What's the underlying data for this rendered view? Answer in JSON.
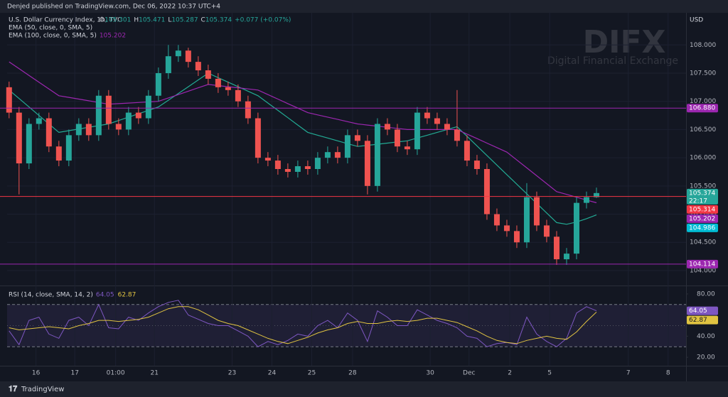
{
  "header": "Denjed published on TradingView.com, Dec 06, 2022 10:37 UTC+4",
  "footer": "TradingView",
  "watermark": {
    "title": "DIFX",
    "subtitle": "Digital Financial Exchange"
  },
  "chart_data": [
    {
      "type": "candlestick",
      "title": "U.S. Dollar Currency Index, 1h, TVC",
      "ohlc_legend": [
        "O",
        "105.301",
        "H",
        "105.471",
        "L",
        "105.287",
        "C",
        "105.374",
        "+0.077 (+0.07%)"
      ],
      "currency": "USD",
      "up_color": "#26a69a",
      "down_color": "#ef5350",
      "grid": true,
      "xlim": [
        -0.2,
        68
      ],
      "ylim": [
        103.76,
        108.52
      ],
      "yticks": [
        {
          "value": 104,
          "label": "104.000"
        },
        {
          "value": 104.5,
          "label": "104.500"
        },
        {
          "value": 105,
          "label": "105.000"
        },
        {
          "value": 105.5,
          "label": "105.500"
        },
        {
          "value": 106,
          "label": "106.000"
        },
        {
          "value": 106.5,
          "label": "106.500"
        },
        {
          "value": 107,
          "label": "107.000"
        },
        {
          "value": 107.5,
          "label": "107.500"
        },
        {
          "value": 108,
          "label": "108.000"
        }
      ],
      "open": [
        107.25,
        106.8,
        105.9,
        106.6,
        106.7,
        106.2,
        105.95,
        106.4,
        106.6,
        106.4,
        107.1,
        106.6,
        106.5,
        106.8,
        106.7,
        107.1,
        107.5,
        107.8,
        107.9,
        107.7,
        107.55,
        107.4,
        107.25,
        107.2,
        107.0,
        106.7,
        106.0,
        105.95,
        105.8,
        105.75,
        105.85,
        105.8,
        106.0,
        106.1,
        106.0,
        106.4,
        106.3,
        105.5,
        106.6,
        106.5,
        106.2,
        106.15,
        106.8,
        106.7,
        106.6,
        106.5,
        106.3,
        105.95,
        105.8,
        105.0,
        104.8,
        104.7,
        104.5,
        105.3,
        104.8,
        104.6,
        104.2,
        104.3,
        105.2,
        105.301
      ],
      "high": [
        107.35,
        106.9,
        106.7,
        106.8,
        106.8,
        106.3,
        106.5,
        106.7,
        106.7,
        107.2,
        107.2,
        106.7,
        106.9,
        106.9,
        107.2,
        107.6,
        108.0,
        108.0,
        107.95,
        107.8,
        107.65,
        107.5,
        107.35,
        107.3,
        107.1,
        106.8,
        106.1,
        106.05,
        105.9,
        105.95,
        105.95,
        106.1,
        106.2,
        106.2,
        106.5,
        106.5,
        106.4,
        106.7,
        106.7,
        106.6,
        106.3,
        106.9,
        106.9,
        106.8,
        106.7,
        107.2,
        106.4,
        106.05,
        105.9,
        105.1,
        104.9,
        104.8,
        105.55,
        105.4,
        104.9,
        104.7,
        104.4,
        105.3,
        105.4,
        105.471
      ],
      "low": [
        106.7,
        105.35,
        105.8,
        106.5,
        106.1,
        105.85,
        105.85,
        106.3,
        106.3,
        106.3,
        106.5,
        106.4,
        106.4,
        106.6,
        106.6,
        107.0,
        107.4,
        107.7,
        107.6,
        107.45,
        107.3,
        107.15,
        107.1,
        106.9,
        106.6,
        105.9,
        105.85,
        105.7,
        105.65,
        105.65,
        105.7,
        105.7,
        105.9,
        105.9,
        105.9,
        106.2,
        105.35,
        105.4,
        106.4,
        106.1,
        106.05,
        106.05,
        106.6,
        106.5,
        106.4,
        106.2,
        105.85,
        105.7,
        104.9,
        104.7,
        104.6,
        104.4,
        104.4,
        104.7,
        104.5,
        104.1,
        104.1,
        104.2,
        105.1,
        105.287
      ],
      "close": [
        106.8,
        105.9,
        106.6,
        106.7,
        106.2,
        105.95,
        106.4,
        106.6,
        106.4,
        107.1,
        106.6,
        106.5,
        106.8,
        106.7,
        107.1,
        107.5,
        107.8,
        107.9,
        107.7,
        107.55,
        107.4,
        107.25,
        107.2,
        107.0,
        106.7,
        106.0,
        105.95,
        105.8,
        105.75,
        105.85,
        105.8,
        106.0,
        106.1,
        106.0,
        106.4,
        106.3,
        105.5,
        106.6,
        106.5,
        106.2,
        106.15,
        106.8,
        106.7,
        106.6,
        106.5,
        106.3,
        105.95,
        105.8,
        105.0,
        104.8,
        104.7,
        104.5,
        105.3,
        104.8,
        104.6,
        104.2,
        104.3,
        105.2,
        105.301,
        105.374
      ],
      "series": [
        {
          "name": "EMA (50, close, 0, SMA, 5)",
          "color": "#22ab94",
          "values": [
            107.2,
            107.05,
            106.9,
            106.75,
            106.6,
            106.45,
            106.48,
            106.51,
            106.54,
            106.57,
            106.6,
            106.66,
            106.72,
            106.78,
            106.84,
            106.9,
            107.02,
            107.14,
            107.26,
            107.38,
            107.5,
            107.42,
            107.34,
            107.26,
            107.18,
            107.1,
            106.97,
            106.84,
            106.71,
            106.58,
            106.45,
            106.4,
            106.35,
            106.3,
            106.25,
            106.2,
            106.22,
            106.24,
            106.26,
            106.28,
            106.3,
            106.35,
            106.4,
            106.45,
            106.5,
            106.55,
            106.38,
            106.21,
            106.04,
            105.87,
            105.7,
            105.53,
            105.36,
            105.19,
            105.02,
            104.85,
            104.82,
            104.86,
            104.92,
            104.986
          ]
        },
        {
          "name": "EMA (100, close, 0, SMA, 5)",
          "color": "#9c27b0",
          "values": [
            107.7,
            107.58,
            107.46,
            107.34,
            107.22,
            107.1,
            107.07,
            107.04,
            107.01,
            106.98,
            106.95,
            106.96,
            106.97,
            106.98,
            106.99,
            107.0,
            107.06,
            107.12,
            107.18,
            107.24,
            107.3,
            107.28,
            107.26,
            107.24,
            107.22,
            107.2,
            107.12,
            107.04,
            106.96,
            106.88,
            106.8,
            106.76,
            106.72,
            106.68,
            106.64,
            106.6,
            106.58,
            106.56,
            106.54,
            106.52,
            106.5,
            106.5,
            106.5,
            106.5,
            106.5,
            106.5,
            106.42,
            106.34,
            106.26,
            106.18,
            106.1,
            105.96,
            105.82,
            105.68,
            105.54,
            105.4,
            105.35,
            105.3,
            105.25,
            105.202
          ]
        }
      ],
      "price_labels": [
        {
          "value": 106.88,
          "label": "106.880",
          "color": "#9c27b0",
          "line": true
        },
        {
          "value": 105.374,
          "label": "105.374",
          "sublabel": "22:17",
          "color": "#26a69a"
        },
        {
          "value": 105.314,
          "label": "105.314",
          "color": "#f23645",
          "line": true
        },
        {
          "value": 105.202,
          "label": "105.202",
          "color": "#9c27b0"
        },
        {
          "value": 104.986,
          "label": "104.986",
          "color": "#00bcd4"
        },
        {
          "value": 104.114,
          "label": "104.114",
          "color": "#9c27b0",
          "line": true
        }
      ]
    },
    {
      "type": "line",
      "title": "RSI (14, close, SMA, 14, 2)",
      "grid": true,
      "xlim": [
        -0.2,
        68
      ],
      "ylim": [
        12,
        86
      ],
      "yticks": [
        {
          "value": 80,
          "label": "80.00"
        },
        {
          "value": 40,
          "label": "40.00"
        },
        {
          "value": 20,
          "label": "20.00"
        }
      ],
      "band": [
        30,
        70
      ],
      "midline": 50,
      "xticks": [
        {
          "value": 2.7,
          "label": "16"
        },
        {
          "value": 6.6,
          "label": "17"
        },
        {
          "value": 10.7,
          "label": "01:00"
        },
        {
          "value": 14.6,
          "label": "21"
        },
        {
          "value": 22.4,
          "label": "23"
        },
        {
          "value": 26.4,
          "label": "24"
        },
        {
          "value": 30.4,
          "label": "25"
        },
        {
          "value": 34.5,
          "label": "28"
        },
        {
          "value": 42.3,
          "label": "30"
        },
        {
          "value": 46.2,
          "label": "Dec"
        },
        {
          "value": 50.3,
          "label": "2"
        },
        {
          "value": 54.3,
          "label": "5"
        },
        {
          "value": 62.2,
          "label": "7"
        },
        {
          "value": 66.2,
          "label": "8"
        }
      ],
      "series": [
        {
          "color": "#7e57c2",
          "tag_text": "#ffffff",
          "values": [
            45,
            32,
            55,
            58,
            42,
            38,
            55,
            58,
            50,
            70,
            48,
            47,
            58,
            55,
            62,
            68,
            72,
            74,
            60,
            56,
            52,
            50,
            50,
            45,
            40,
            30,
            35,
            32,
            36,
            42,
            40,
            50,
            55,
            48,
            62,
            55,
            35,
            64,
            58,
            50,
            50,
            65,
            60,
            55,
            52,
            48,
            40,
            38,
            30,
            33,
            34,
            32,
            58,
            42,
            35,
            30,
            38,
            62,
            68,
            64.05
          ]
        },
        {
          "color": "#e0c341",
          "tag_text": "#131722",
          "values": [
            48,
            46,
            47,
            48,
            49,
            48,
            47,
            50,
            52,
            55,
            55,
            54,
            55,
            56,
            58,
            62,
            66,
            68,
            68,
            65,
            60,
            55,
            52,
            50,
            46,
            42,
            38,
            35,
            33,
            36,
            39,
            43,
            46,
            48,
            52,
            54,
            52,
            52,
            54,
            55,
            54,
            55,
            57,
            57,
            55,
            53,
            49,
            45,
            40,
            36,
            34,
            33,
            36,
            38,
            40,
            38,
            37,
            44,
            54,
            62.87
          ]
        }
      ]
    }
  ]
}
